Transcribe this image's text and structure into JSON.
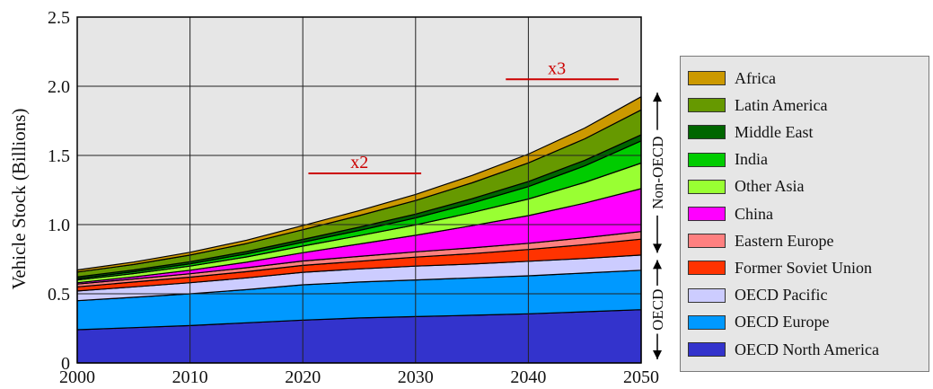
{
  "chart_data": {
    "type": "area",
    "stacked": true,
    "ylabel": "Vehicle Stock (Billions)",
    "xlabel": "",
    "title": "",
    "xlim": [
      2000,
      2050
    ],
    "ylim": [
      0,
      2.5
    ],
    "grid": true,
    "legend_position": "right",
    "x": [
      2000,
      2005,
      2010,
      2015,
      2020,
      2025,
      2030,
      2035,
      2040,
      2045,
      2050
    ],
    "x_ticks": [
      "2000",
      "2010",
      "2020",
      "2030",
      "2040",
      "2050"
    ],
    "y_ticks": [
      "0",
      "0.5",
      "1.0",
      "1.5",
      "2.0",
      "2.5"
    ],
    "series": [
      {
        "name": "OECD North America",
        "color": "#3333cc",
        "values": [
          0.24,
          0.255,
          0.27,
          0.29,
          0.31,
          0.325,
          0.335,
          0.345,
          0.355,
          0.37,
          0.385
        ]
      },
      {
        "name": "OECD Europe",
        "color": "#0099ff",
        "values": [
          0.21,
          0.22,
          0.23,
          0.24,
          0.255,
          0.26,
          0.265,
          0.27,
          0.275,
          0.28,
          0.285
        ]
      },
      {
        "name": "OECD Pacific",
        "color": "#ccccff",
        "values": [
          0.07,
          0.075,
          0.08,
          0.085,
          0.09,
          0.095,
          0.1,
          0.1,
          0.105,
          0.105,
          0.11
        ]
      },
      {
        "name": "Former Soviet Union",
        "color": "#ff3300",
        "values": [
          0.03,
          0.035,
          0.04,
          0.045,
          0.05,
          0.055,
          0.065,
          0.075,
          0.085,
          0.1,
          0.115
        ]
      },
      {
        "name": "Eastern Europe",
        "color": "#ff8080",
        "values": [
          0.02,
          0.022,
          0.025,
          0.028,
          0.032,
          0.035,
          0.038,
          0.042,
          0.045,
          0.05,
          0.055
        ]
      },
      {
        "name": "China",
        "color": "#ff00ff",
        "values": [
          0.01,
          0.015,
          0.025,
          0.04,
          0.06,
          0.09,
          0.12,
          0.16,
          0.2,
          0.25,
          0.31
        ]
      },
      {
        "name": "Other Asia",
        "color": "#99ff33",
        "values": [
          0.02,
          0.024,
          0.03,
          0.038,
          0.048,
          0.06,
          0.075,
          0.095,
          0.12,
          0.15,
          0.185
        ]
      },
      {
        "name": "India",
        "color": "#00cc00",
        "values": [
          0.01,
          0.013,
          0.017,
          0.022,
          0.028,
          0.038,
          0.05,
          0.068,
          0.09,
          0.12,
          0.16
        ]
      },
      {
        "name": "Middle East",
        "color": "#006600",
        "values": [
          0.012,
          0.013,
          0.015,
          0.017,
          0.02,
          0.024,
          0.028,
          0.032,
          0.036,
          0.04,
          0.044
        ]
      },
      {
        "name": "Latin America",
        "color": "#669900",
        "values": [
          0.035,
          0.04,
          0.048,
          0.058,
          0.07,
          0.083,
          0.098,
          0.115,
          0.135,
          0.155,
          0.18
        ]
      },
      {
        "name": "Africa",
        "color": "#cc9900",
        "values": [
          0.015,
          0.017,
          0.02,
          0.024,
          0.03,
          0.036,
          0.044,
          0.053,
          0.064,
          0.078,
          0.095
        ]
      }
    ],
    "annotations": [
      {
        "text": "x2",
        "x_start": 2020.5,
        "x_end": 2030.5,
        "y": 1.37,
        "color": "#cc0000"
      },
      {
        "text": "x3",
        "x_start": 2038,
        "x_end": 2048,
        "y": 2.05,
        "color": "#cc0000"
      }
    ],
    "groups": [
      {
        "label": "Non-OECD",
        "y_from": 0.77,
        "y_to": 1.98
      },
      {
        "label": "OECD",
        "y_from": 0.0,
        "y_to": 0.77
      }
    ],
    "plot_background": "#e6e6e6"
  },
  "legend": {
    "items": [
      {
        "label": "Africa",
        "color": "#cc9900"
      },
      {
        "label": "Latin America",
        "color": "#669900"
      },
      {
        "label": "Middle East",
        "color": "#006600"
      },
      {
        "label": "India",
        "color": "#00cc00"
      },
      {
        "label": "Other Asia",
        "color": "#99ff33"
      },
      {
        "label": "China",
        "color": "#ff00ff"
      },
      {
        "label": "Eastern Europe",
        "color": "#ff8080"
      },
      {
        "label": "Former Soviet Union",
        "color": "#ff3300"
      },
      {
        "label": "OECD Pacific",
        "color": "#ccccff"
      },
      {
        "label": "OECD Europe",
        "color": "#0099ff"
      },
      {
        "label": "OECD North America",
        "color": "#3333cc"
      }
    ]
  }
}
